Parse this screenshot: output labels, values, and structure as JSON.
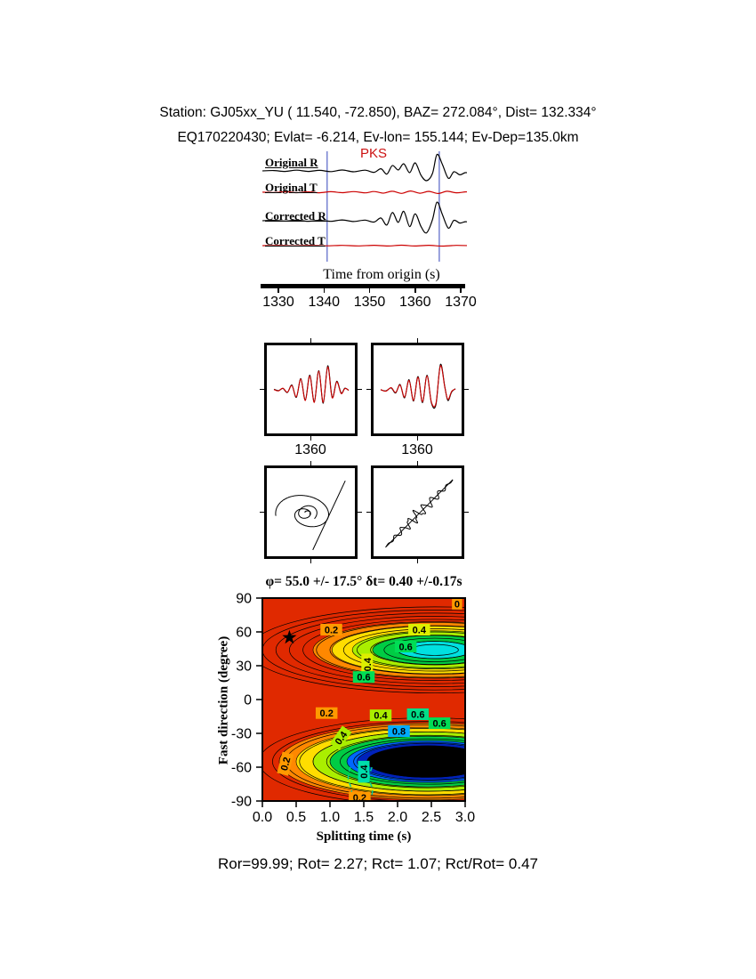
{
  "header": {
    "line1": "Station: GJ05xx_YU (  11.540,  -72.850), BAZ=  272.084°, Dist=  132.334°",
    "line2": "EQ170220430; Evlat=  -6.214, Ev-lon= 155.144; Ev-Dep=135.0km"
  },
  "footer": {
    "stats": "Ror=99.99; Rot= 2.27; Rct= 1.07; Rct/Rot= 0.47"
  },
  "colors": {
    "trace_black": "#000000",
    "trace_red": "#cc0000",
    "window_marker_blue": "#3344bb",
    "phase_label_red": "#cc1111"
  },
  "chart_data": [
    {
      "id": "waveforms",
      "type": "line",
      "phase_label": "PKS",
      "xlabel": "Time from origin (s)",
      "x_ticks": [
        "1330",
        "1340",
        "1350",
        "1360",
        "1370"
      ],
      "window_s": [
        1340.7,
        1365.3
      ],
      "series": [
        {
          "name": "Original R",
          "color": "#000000",
          "points": [
            [
              1326.5,
              0
            ],
            [
              1329,
              0.02
            ],
            [
              1331.5,
              -0.03
            ],
            [
              1334,
              0.04
            ],
            [
              1336.5,
              -0.03
            ],
            [
              1339,
              0.03
            ],
            [
              1341.5,
              -0.04
            ],
            [
              1344,
              0.05
            ],
            [
              1346.5,
              -0.05
            ],
            [
              1349,
              0.04
            ],
            [
              1351,
              -0.08
            ],
            [
              1352.5,
              0.12
            ],
            [
              1353.8,
              -0.18
            ],
            [
              1355,
              0.3
            ],
            [
              1356.3,
              0.05
            ],
            [
              1357.5,
              0.4
            ],
            [
              1358.8,
              -0.1
            ],
            [
              1360,
              0.45
            ],
            [
              1361.3,
              -0.25
            ],
            [
              1362.5,
              -0.55
            ],
            [
              1363.8,
              -0.15
            ],
            [
              1364.8,
              0.92
            ],
            [
              1366,
              0.35
            ],
            [
              1367.3,
              -0.42
            ],
            [
              1368.5,
              -0.05
            ],
            [
              1369.8,
              -0.22
            ],
            [
              1371,
              -0.1
            ],
            [
              1372.3,
              -0.14
            ]
          ]
        },
        {
          "name": "Original T",
          "color": "#cc0000",
          "points": [
            [
              1326.5,
              0.02
            ],
            [
              1329,
              -0.06
            ],
            [
              1331.5,
              0.07
            ],
            [
              1334,
              -0.07
            ],
            [
              1336.5,
              0.06
            ],
            [
              1339,
              -0.08
            ],
            [
              1341.5,
              0.09
            ],
            [
              1344,
              -0.07
            ],
            [
              1346.5,
              0.1
            ],
            [
              1349,
              -0.1
            ],
            [
              1351,
              0.12
            ],
            [
              1353,
              -0.14
            ],
            [
              1355,
              0.16
            ],
            [
              1357,
              -0.18
            ],
            [
              1359,
              0.2
            ],
            [
              1361,
              -0.16
            ],
            [
              1363,
              0.14
            ],
            [
              1365,
              -0.2
            ],
            [
              1367,
              0.16
            ],
            [
              1369,
              -0.09
            ],
            [
              1371,
              0.05
            ],
            [
              1372.3,
              0.02
            ]
          ]
        },
        {
          "name": "Corrected R",
          "color": "#000000",
          "points": [
            [
              1326.5,
              0
            ],
            [
              1329,
              0.02
            ],
            [
              1331.5,
              -0.02
            ],
            [
              1334,
              0.03
            ],
            [
              1336.5,
              -0.03
            ],
            [
              1339,
              0.02
            ],
            [
              1341.5,
              -0.03
            ],
            [
              1344,
              0.04
            ],
            [
              1346.5,
              -0.04
            ],
            [
              1349,
              0.03
            ],
            [
              1351,
              -0.07
            ],
            [
              1352.5,
              0.14
            ],
            [
              1353.8,
              -0.22
            ],
            [
              1355,
              0.42
            ],
            [
              1356.3,
              -0.08
            ],
            [
              1357.5,
              0.48
            ],
            [
              1358.8,
              -0.3
            ],
            [
              1360,
              0.35
            ],
            [
              1361.3,
              -0.3
            ],
            [
              1362.5,
              -0.62
            ],
            [
              1363.8,
              0.05
            ],
            [
              1364.8,
              0.95
            ],
            [
              1366,
              0.3
            ],
            [
              1367.3,
              -0.38
            ],
            [
              1368.5,
              0.02
            ],
            [
              1369.8,
              -0.12
            ],
            [
              1371,
              -0.05
            ],
            [
              1372.3,
              -0.08
            ]
          ]
        },
        {
          "name": "Corrected T",
          "color": "#cc0000",
          "points": [
            [
              1326.5,
              0
            ],
            [
              1330,
              0.03
            ],
            [
              1333.5,
              -0.04
            ],
            [
              1337,
              0.04
            ],
            [
              1340.5,
              -0.04
            ],
            [
              1344,
              0.05
            ],
            [
              1347.5,
              -0.05
            ],
            [
              1351,
              0.06
            ],
            [
              1354,
              -0.07
            ],
            [
              1357,
              0.08
            ],
            [
              1360,
              -0.07
            ],
            [
              1363,
              0.06
            ],
            [
              1366,
              -0.08
            ],
            [
              1369,
              0.05
            ],
            [
              1372.3,
              -0.02
            ]
          ]
        }
      ]
    },
    {
      "id": "waveform-pair-left",
      "type": "line",
      "x_tick_label": "1360",
      "series": [
        {
          "name": "component-1",
          "color": "#000000",
          "points": [
            [
              0,
              0.02
            ],
            [
              0.06,
              -0.03
            ],
            [
              0.12,
              0.05
            ],
            [
              0.18,
              -0.1
            ],
            [
              0.24,
              0.18
            ],
            [
              0.3,
              -0.28
            ],
            [
              0.36,
              0.42
            ],
            [
              0.42,
              -0.38
            ],
            [
              0.48,
              0.55
            ],
            [
              0.54,
              -0.45
            ],
            [
              0.6,
              0.72
            ],
            [
              0.66,
              -0.5
            ],
            [
              0.72,
              0.9
            ],
            [
              0.78,
              -0.28
            ],
            [
              0.84,
              0.32
            ],
            [
              0.9,
              -0.12
            ],
            [
              0.95,
              0.06
            ],
            [
              1,
              -0.02
            ]
          ]
        },
        {
          "name": "component-2",
          "color": "#cc0000",
          "points": [
            [
              0,
              0.01
            ],
            [
              0.06,
              -0.04
            ],
            [
              0.12,
              0.06
            ],
            [
              0.18,
              -0.09
            ],
            [
              0.24,
              0.16
            ],
            [
              0.3,
              -0.26
            ],
            [
              0.36,
              0.4
            ],
            [
              0.42,
              -0.4
            ],
            [
              0.48,
              0.52
            ],
            [
              0.54,
              -0.47
            ],
            [
              0.6,
              0.7
            ],
            [
              0.66,
              -0.47
            ],
            [
              0.72,
              0.86
            ],
            [
              0.78,
              -0.3
            ],
            [
              0.84,
              0.3
            ],
            [
              0.9,
              -0.14
            ],
            [
              0.95,
              0.05
            ],
            [
              1,
              -0.02
            ]
          ]
        }
      ]
    },
    {
      "id": "waveform-pair-right",
      "type": "line",
      "x_tick_label": "1360",
      "series": [
        {
          "name": "component-1",
          "color": "#000000",
          "points": [
            [
              0,
              0
            ],
            [
              0.07,
              -0.04
            ],
            [
              0.14,
              0.07
            ],
            [
              0.2,
              -0.12
            ],
            [
              0.26,
              0.2
            ],
            [
              0.32,
              -0.3
            ],
            [
              0.38,
              0.38
            ],
            [
              0.44,
              -0.42
            ],
            [
              0.5,
              0.5
            ],
            [
              0.56,
              -0.48
            ],
            [
              0.62,
              0.55
            ],
            [
              0.68,
              -0.5
            ],
            [
              0.74,
              -0.55
            ],
            [
              0.8,
              0.95
            ],
            [
              0.86,
              0.1
            ],
            [
              0.9,
              -0.4
            ],
            [
              0.95,
              -0.08
            ],
            [
              1,
              0.04
            ]
          ]
        },
        {
          "name": "component-2",
          "color": "#cc0000",
          "points": [
            [
              0,
              0.01
            ],
            [
              0.07,
              -0.05
            ],
            [
              0.14,
              0.08
            ],
            [
              0.2,
              -0.1
            ],
            [
              0.26,
              0.18
            ],
            [
              0.32,
              -0.27
            ],
            [
              0.38,
              0.35
            ],
            [
              0.44,
              -0.4
            ],
            [
              0.5,
              0.47
            ],
            [
              0.56,
              -0.45
            ],
            [
              0.62,
              0.52
            ],
            [
              0.68,
              -0.47
            ],
            [
              0.74,
              -0.5
            ],
            [
              0.8,
              0.9
            ],
            [
              0.86,
              0.08
            ],
            [
              0.9,
              -0.36
            ],
            [
              0.95,
              -0.06
            ],
            [
              1,
              0.03
            ]
          ]
        }
      ]
    },
    {
      "id": "particle-motion-left",
      "type": "scatter",
      "elements": [
        {
          "kind": "spiral",
          "cx": -0.1,
          "cy": 0.0,
          "r0": 0.82,
          "r1": 0.07,
          "theta0": 200,
          "theta1": -340,
          "squash": 0.72,
          "tilt": -12
        },
        {
          "kind": "spiral",
          "cx": -0.12,
          "cy": 0.03,
          "r0": 0.3,
          "r1": 0.05,
          "theta0": -60,
          "theta1": 480,
          "squash": 0.8,
          "tilt": 20
        },
        {
          "kind": "line",
          "points": [
            [
              0.05,
              -0.95
            ],
            [
              0.88,
              0.9
            ]
          ]
        }
      ]
    },
    {
      "id": "particle-motion-right",
      "type": "scatter",
      "elements": [
        {
          "kind": "scribble",
          "x0": -0.8,
          "y0": -0.85,
          "x1": 0.9,
          "y1": 0.92,
          "waves": 9,
          "amp": 0.12
        },
        {
          "kind": "line",
          "points": [
            [
              -0.82,
              -0.88
            ],
            [
              0.9,
              0.93
            ]
          ]
        }
      ]
    },
    {
      "id": "splitting-map",
      "type": "heatmap",
      "title": "φ= 55.0 +/- 17.5° δt= 0.40 +/-0.17s",
      "xlabel": "Splitting time (s)",
      "ylabel": "Fast direction (degree)",
      "xlim": [
        0,
        3
      ],
      "ylim": [
        -90,
        90
      ],
      "x_ticks": [
        "0.0",
        "0.5",
        "1.0",
        "1.5",
        "2.0",
        "2.5",
        "3.0"
      ],
      "y_ticks": [
        "90",
        "60",
        "30",
        "0",
        "-30",
        "-60",
        "-90"
      ],
      "best_fit": {
        "phi_deg": 55.0,
        "phi_err_deg": 17.5,
        "dt_s": 0.4,
        "dt_err_s": 0.17
      },
      "star": {
        "x": 0.4,
        "y": 55
      },
      "background": "#e02900",
      "basins": [
        {
          "cx": 2.55,
          "cy": 44,
          "ry_per_rx": 13.9,
          "fill_rings": [
            {
              "rx": 1.8,
              "color": "#ff8800"
            },
            {
              "rx": 1.52,
              "color": "#ffdd00"
            },
            {
              "rx": 1.22,
              "color": "#aaee00"
            },
            {
              "rx": 0.92,
              "color": "#00cc44"
            },
            {
              "rx": 0.55,
              "color": "#00e0e0"
            }
          ],
          "contour_rx": [
            0.35,
            0.55,
            0.75,
            0.95,
            1.15,
            1.35,
            1.55,
            1.75,
            1.95,
            2.15,
            2.35,
            2.55,
            2.75
          ]
        },
        {
          "cx": 2.45,
          "cy": -55,
          "ry_per_rx": 15.5,
          "fill_rings": [
            {
              "rx": 2.2,
              "color": "#ff8800"
            },
            {
              "rx": 1.95,
              "color": "#ffdd00"
            },
            {
              "rx": 1.7,
              "color": "#aaee00"
            },
            {
              "rx": 1.45,
              "color": "#00cc44"
            },
            {
              "rx": 1.2,
              "color": "#0066ff"
            },
            {
              "rx": 1.05,
              "color": "#0022bb"
            },
            {
              "rx": 0.9,
              "color": "#000000"
            }
          ],
          "contour_rx": [
            0.3,
            0.5,
            0.7,
            0.9,
            1.1,
            1.3,
            1.5,
            1.7,
            1.9,
            2.1,
            2.3,
            2.5
          ]
        }
      ],
      "dashed_contours": [
        [
          [
            1.3,
            -60
          ],
          [
            1.27,
            -70
          ],
          [
            1.32,
            -80
          ],
          [
            1.3,
            -88
          ]
        ],
        [
          [
            1.62,
            -60
          ],
          [
            1.58,
            -70
          ],
          [
            1.63,
            -80
          ],
          [
            1.6,
            -88
          ]
        ]
      ],
      "contour_labels": [
        {
          "x": 2.88,
          "y": 85,
          "text": "0",
          "bg": "#ff9900",
          "rot": 0
        },
        {
          "x": 1.02,
          "y": 62,
          "text": "0.2",
          "bg": "#ff9900",
          "rot": 0
        },
        {
          "x": 2.32,
          "y": 62,
          "text": "0.4",
          "bg": "#ddee00",
          "rot": 0
        },
        {
          "x": 2.12,
          "y": 47,
          "text": "0.6",
          "bg": "#00dd55",
          "rot": 0
        },
        {
          "x": 1.55,
          "y": 31,
          "text": "0.4",
          "bg": "#ddee00",
          "rot": -90
        },
        {
          "x": 1.5,
          "y": 20,
          "text": "0.6",
          "bg": "#00dd55",
          "rot": 0
        },
        {
          "x": 0.95,
          "y": -12,
          "text": "0.2",
          "bg": "#ff9900",
          "rot": 0
        },
        {
          "x": 1.75,
          "y": -14,
          "text": "0.4",
          "bg": "#aaee00",
          "rot": 0
        },
        {
          "x": 2.3,
          "y": -13,
          "text": "0.6",
          "bg": "#00dd88",
          "rot": 0
        },
        {
          "x": 2.62,
          "y": -21,
          "text": "0.6",
          "bg": "#00dd55",
          "rot": 0
        },
        {
          "x": 2.02,
          "y": -28,
          "text": "0.8",
          "bg": "#00aaff",
          "rot": 0
        },
        {
          "x": 1.16,
          "y": -34,
          "text": "0.4",
          "bg": "#aaee00",
          "rot": -55
        },
        {
          "x": 0.34,
          "y": -57,
          "text": "0.2",
          "bg": "#ff9900",
          "rot": -75
        },
        {
          "x": 1.5,
          "y": -64,
          "text": "0.4",
          "bg": "#00ddaa",
          "rot": -90
        },
        {
          "x": 1.44,
          "y": -87,
          "text": "0.2",
          "bg": "#ff9900",
          "rot": 0
        }
      ]
    }
  ]
}
